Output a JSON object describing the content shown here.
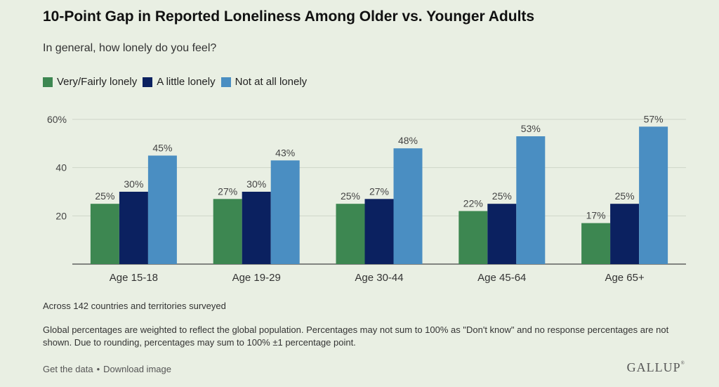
{
  "title": "10-Point Gap in Reported Loneliness Among Older vs. Younger Adults",
  "subtitle": "In general, how lonely do you feel?",
  "notes": {
    "coverage": "Across 142 countries and territories surveyed",
    "method": "Global percentages are weighted to reflect the global population. Percentages may not sum to 100% as \"Don't know\" and no response percentages are not shown. Due to rounding, percentages may sum to 100% ±1 percentage point."
  },
  "footer": {
    "get_data": "Get the data",
    "separator": "•",
    "download": "Download image",
    "brand": "GALLUP"
  },
  "chart_data": {
    "type": "bar",
    "categories": [
      "Age 15-18",
      "Age 19-29",
      "Age 30-44",
      "Age 45-64",
      "Age 65+"
    ],
    "series": [
      {
        "name": "Very/Fairly lonely",
        "color": "#3d8751",
        "values": [
          25,
          27,
          25,
          22,
          17
        ]
      },
      {
        "name": "A little lonely",
        "color": "#0b2160",
        "values": [
          30,
          30,
          27,
          25,
          25
        ]
      },
      {
        "name": "Not at all lonely",
        "color": "#4a8ec2",
        "values": [
          45,
          43,
          48,
          53,
          57
        ]
      }
    ],
    "ylim": [
      0,
      60
    ],
    "yticks": [
      "",
      "20",
      "40",
      "60%"
    ],
    "value_suffix": "%",
    "grid": true,
    "legend": "top-left"
  }
}
